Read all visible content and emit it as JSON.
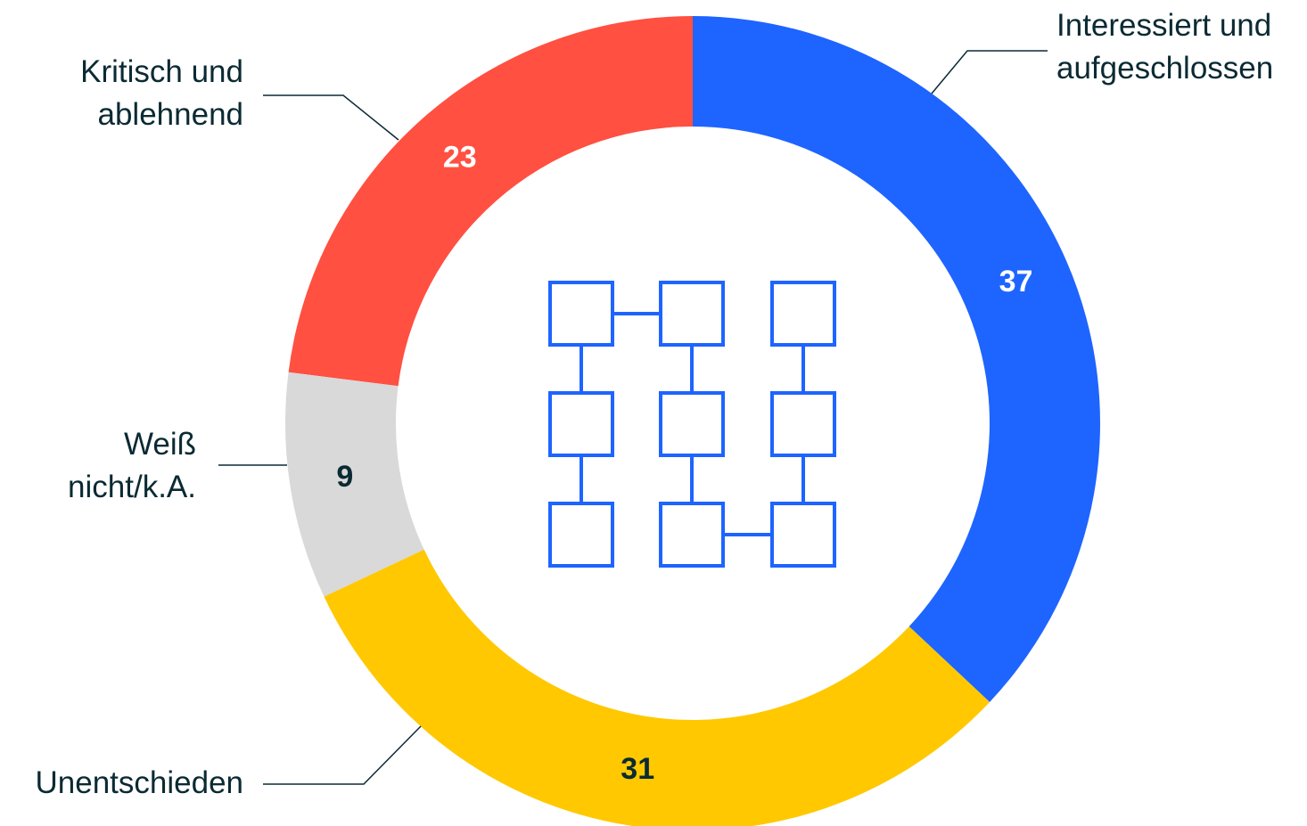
{
  "chart_data": {
    "type": "donut",
    "categories": [
      "Interessiert und aufgeschlossen",
      "Unentschieden",
      "Weiß nicht/k.A.",
      "Kritisch und ablehnend"
    ],
    "values": [
      37,
      31,
      9,
      23
    ],
    "colors": [
      "#1e64ff",
      "#ffc800",
      "#d9d9d9",
      "#ff5041"
    ],
    "value_label_colors": [
      "#ffffff",
      "#0b2a33",
      "#0b2a33",
      "#ffffff"
    ]
  }
}
